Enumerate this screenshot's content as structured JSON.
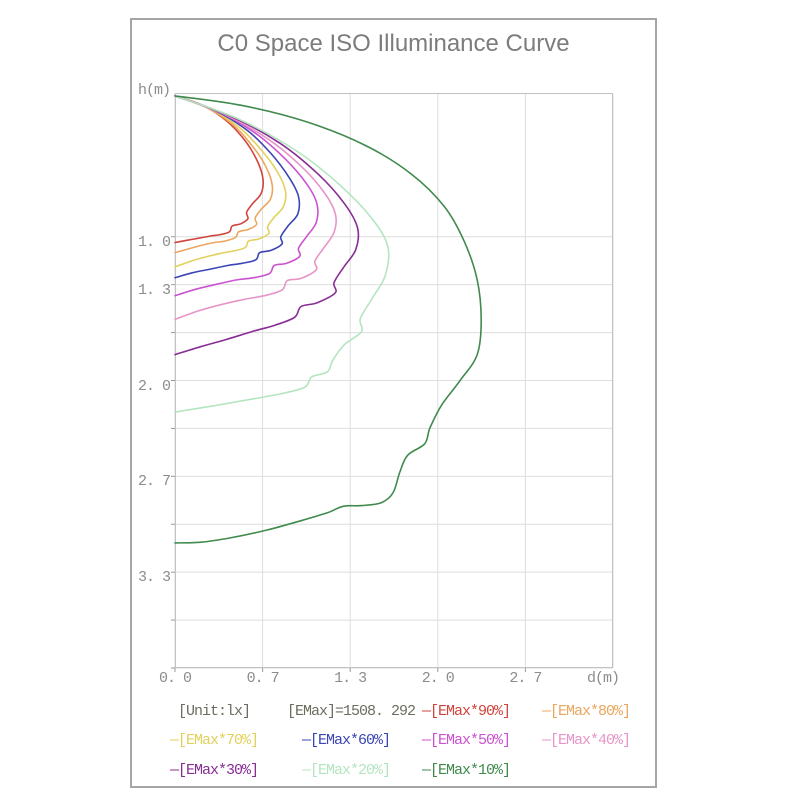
{
  "title": "C0 Space ISO Illuminance Curve",
  "chart_data": {
    "type": "line",
    "title": "C0 Space ISO Illuminance Curve",
    "xlabel": "d(m)",
    "ylabel": "h(m)",
    "x_range_m": [
      0,
      3.3333
    ],
    "y_range_m": [
      0,
      4.0
    ],
    "grid": true,
    "unit_label": "[Unit:lx]",
    "emax_label": "[EMax]=1508. 292",
    "emax_value": 1508.292,
    "x_gridlines": [
      0,
      0.6667,
      1.3333,
      2.0,
      2.6667,
      3.3333
    ],
    "y_gridlines": [
      1.0,
      1.3333,
      1.6667,
      2.0,
      2.3333,
      2.6667,
      3.0,
      3.3333,
      3.6667,
      4.0
    ],
    "x_ticks": [
      {
        "v": 0,
        "label": "0. 0"
      },
      {
        "v": 0.6667,
        "label": "0. 7"
      },
      {
        "v": 1.3333,
        "label": "1. 3"
      },
      {
        "v": 2.0,
        "label": "2. 0"
      },
      {
        "v": 2.6667,
        "label": "2. 7"
      }
    ],
    "y_ticks": [
      {
        "v": 1.0,
        "label": "1. 0"
      },
      {
        "v": 1.3333,
        "label": "1. 3"
      },
      {
        "v": 2.0,
        "label": "2. 0"
      },
      {
        "v": 2.6667,
        "label": "2. 7"
      },
      {
        "v": 3.3333,
        "label": "3. 3"
      }
    ],
    "series": [
      {
        "name": "emax-90",
        "label": "[EMax*90%]",
        "percent": 90,
        "color": "#d0443c",
        "points": [
          [
            0,
            0.02
          ],
          [
            0.22,
            0.09
          ],
          [
            0.4,
            0.2
          ],
          [
            0.54,
            0.34
          ],
          [
            0.63,
            0.48
          ],
          [
            0.67,
            0.6
          ],
          [
            0.655,
            0.7
          ],
          [
            0.59,
            0.77
          ],
          [
            0.545,
            0.83
          ],
          [
            0.555,
            0.875
          ],
          [
            0.5,
            0.91
          ],
          [
            0.435,
            0.925
          ],
          [
            0.415,
            0.965
          ],
          [
            0.345,
            0.985
          ],
          [
            0.27,
            0.995
          ],
          [
            0.18,
            1.01
          ],
          [
            0.09,
            1.025
          ],
          [
            0,
            1.04
          ]
        ]
      },
      {
        "name": "emax-80",
        "label": "[EMax*80%]",
        "percent": 80,
        "color": "#eca65e",
        "points": [
          [
            0,
            0.02
          ],
          [
            0.24,
            0.1
          ],
          [
            0.44,
            0.22
          ],
          [
            0.59,
            0.37
          ],
          [
            0.69,
            0.51
          ],
          [
            0.74,
            0.64
          ],
          [
            0.725,
            0.74
          ],
          [
            0.655,
            0.81
          ],
          [
            0.61,
            0.87
          ],
          [
            0.62,
            0.915
          ],
          [
            0.555,
            0.95
          ],
          [
            0.485,
            0.965
          ],
          [
            0.46,
            1.005
          ],
          [
            0.38,
            1.03
          ],
          [
            0.3,
            1.04
          ],
          [
            0.2,
            1.06
          ],
          [
            0.1,
            1.085
          ],
          [
            0,
            1.11
          ]
        ]
      },
      {
        "name": "emax-70",
        "label": "[EMax*70%]",
        "percent": 70,
        "color": "#e2d15c",
        "points": [
          [
            0,
            0.02
          ],
          [
            0.27,
            0.11
          ],
          [
            0.49,
            0.24
          ],
          [
            0.66,
            0.4
          ],
          [
            0.78,
            0.55
          ],
          [
            0.84,
            0.68
          ],
          [
            0.825,
            0.79
          ],
          [
            0.755,
            0.865
          ],
          [
            0.705,
            0.93
          ],
          [
            0.715,
            0.975
          ],
          [
            0.64,
            1.015
          ],
          [
            0.56,
            1.03
          ],
          [
            0.535,
            1.075
          ],
          [
            0.44,
            1.1
          ],
          [
            0.35,
            1.115
          ],
          [
            0.235,
            1.14
          ],
          [
            0.12,
            1.17
          ],
          [
            0,
            1.21
          ]
        ]
      },
      {
        "name": "emax-60",
        "label": "[EMax*60%]",
        "percent": 60,
        "color": "#3c45b5",
        "points": [
          [
            0,
            0.02
          ],
          [
            0.3,
            0.12
          ],
          [
            0.55,
            0.26
          ],
          [
            0.73,
            0.42
          ],
          [
            0.87,
            0.59
          ],
          [
            0.94,
            0.72
          ],
          [
            0.935,
            0.84
          ],
          [
            0.86,
            0.925
          ],
          [
            0.805,
            1.0
          ],
          [
            0.815,
            1.05
          ],
          [
            0.73,
            1.095
          ],
          [
            0.645,
            1.11
          ],
          [
            0.615,
            1.16
          ],
          [
            0.51,
            1.185
          ],
          [
            0.4,
            1.2
          ],
          [
            0.27,
            1.225
          ],
          [
            0.135,
            1.25
          ],
          [
            0,
            1.285
          ]
        ]
      },
      {
        "name": "emax-50",
        "label": "[EMax*50%]",
        "percent": 50,
        "color": "#cb53d0",
        "points": [
          [
            0,
            0.02
          ],
          [
            0.33,
            0.13
          ],
          [
            0.62,
            0.285
          ],
          [
            0.84,
            0.46
          ],
          [
            1.0,
            0.63
          ],
          [
            1.08,
            0.77
          ],
          [
            1.075,
            0.9
          ],
          [
            1.0,
            1.0
          ],
          [
            0.94,
            1.08
          ],
          [
            0.95,
            1.135
          ],
          [
            0.85,
            1.185
          ],
          [
            0.755,
            1.2
          ],
          [
            0.72,
            1.255
          ],
          [
            0.6,
            1.285
          ],
          [
            0.47,
            1.3
          ],
          [
            0.32,
            1.33
          ],
          [
            0.16,
            1.365
          ],
          [
            0,
            1.41
          ]
        ]
      },
      {
        "name": "emax-40",
        "label": "[EMax*40%]",
        "percent": 40,
        "color": "#e795c8",
        "points": [
          [
            0,
            0.02
          ],
          [
            0.37,
            0.145
          ],
          [
            0.7,
            0.315
          ],
          [
            0.95,
            0.5
          ],
          [
            1.13,
            0.685
          ],
          [
            1.22,
            0.84
          ],
          [
            1.21,
            0.97
          ],
          [
            1.13,
            1.08
          ],
          [
            1.065,
            1.17
          ],
          [
            1.075,
            1.23
          ],
          [
            0.96,
            1.29
          ],
          [
            0.855,
            1.305
          ],
          [
            0.815,
            1.37
          ],
          [
            0.68,
            1.41
          ],
          [
            0.53,
            1.435
          ],
          [
            0.36,
            1.47
          ],
          [
            0.18,
            1.515
          ],
          [
            0,
            1.575
          ]
        ]
      },
      {
        "name": "emax-30",
        "label": "[EMax*30%]",
        "percent": 30,
        "color": "#882d94",
        "points": [
          [
            0,
            0.02
          ],
          [
            0.42,
            0.16
          ],
          [
            0.8,
            0.35
          ],
          [
            1.09,
            0.565
          ],
          [
            1.29,
            0.77
          ],
          [
            1.39,
            0.94
          ],
          [
            1.375,
            1.09
          ],
          [
            1.285,
            1.21
          ],
          [
            1.21,
            1.32
          ],
          [
            1.22,
            1.39
          ],
          [
            1.08,
            1.46
          ],
          [
            0.96,
            1.485
          ],
          [
            0.91,
            1.56
          ],
          [
            0.76,
            1.615
          ],
          [
            0.585,
            1.66
          ],
          [
            0.39,
            1.715
          ],
          [
            0.195,
            1.765
          ],
          [
            0,
            1.82
          ]
        ]
      },
      {
        "name": "emax-20",
        "label": "[EMax*20%]",
        "percent": 20,
        "color": "#b4e5c0",
        "points": [
          [
            0,
            0.02
          ],
          [
            0.48,
            0.18
          ],
          [
            0.92,
            0.4
          ],
          [
            1.26,
            0.645
          ],
          [
            1.5,
            0.875
          ],
          [
            1.62,
            1.07
          ],
          [
            1.6,
            1.27
          ],
          [
            1.5,
            1.43
          ],
          [
            1.41,
            1.57
          ],
          [
            1.42,
            1.66
          ],
          [
            1.29,
            1.75
          ],
          [
            1.2,
            1.86
          ],
          [
            1.16,
            1.94
          ],
          [
            1.04,
            1.975
          ],
          [
            0.99,
            2.045
          ],
          [
            0.82,
            2.09
          ],
          [
            0.58,
            2.13
          ],
          [
            0.3,
            2.175
          ],
          [
            0,
            2.22
          ]
        ]
      },
      {
        "name": "emax-10",
        "label": "[EMax*10%]",
        "percent": 10,
        "color": "#418a4d",
        "points": [
          [
            0,
            0.02
          ],
          [
            0.5,
            0.085
          ],
          [
            1.0,
            0.2
          ],
          [
            1.45,
            0.365
          ],
          [
            1.8,
            0.565
          ],
          [
            2.05,
            0.79
          ],
          [
            2.2,
            1.03
          ],
          [
            2.3,
            1.3
          ],
          [
            2.33,
            1.58
          ],
          [
            2.3,
            1.82
          ],
          [
            2.17,
            2.0
          ],
          [
            2.03,
            2.17
          ],
          [
            1.94,
            2.33
          ],
          [
            1.9,
            2.44
          ],
          [
            1.77,
            2.52
          ],
          [
            1.71,
            2.64
          ],
          [
            1.66,
            2.78
          ],
          [
            1.57,
            2.85
          ],
          [
            1.42,
            2.87
          ],
          [
            1.28,
            2.875
          ],
          [
            1.16,
            2.92
          ],
          [
            0.96,
            2.975
          ],
          [
            0.7,
            3.04
          ],
          [
            0.42,
            3.095
          ],
          [
            0.2,
            3.125
          ],
          [
            0,
            3.13
          ]
        ]
      }
    ]
  },
  "legend": {
    "rows": [
      [
        {
          "name": "unit",
          "label": "[Unit:lx]",
          "color": "#6d6d60",
          "dash": false
        },
        {
          "name": "emax",
          "label": "[EMax]=1508. 292",
          "color": "#6d6d60",
          "dash": false
        },
        {
          "name": "emax-90",
          "label": "[EMax*90%]",
          "color": "#d0443c",
          "dash": true
        },
        {
          "name": "emax-80",
          "label": "[EMax*80%]",
          "color": "#eca65e",
          "dash": true
        }
      ],
      [
        {
          "name": "emax-70",
          "label": "[EMax*70%]",
          "color": "#e2d15c",
          "dash": true
        },
        {
          "name": "emax-60",
          "label": "[EMax*60%]",
          "color": "#3c45b5",
          "dash": true
        },
        {
          "name": "emax-50",
          "label": "[EMax*50%]",
          "color": "#cb53d0",
          "dash": true
        },
        {
          "name": "emax-40",
          "label": "[EMax*40%]",
          "color": "#e795c8",
          "dash": true
        }
      ],
      [
        {
          "name": "emax-30",
          "label": "[EMax*30%]",
          "color": "#882d94",
          "dash": true
        },
        {
          "name": "emax-20",
          "label": "[EMax*20%]",
          "color": "#b4e5c0",
          "dash": true
        },
        {
          "name": "emax-10",
          "label": "[EMax*10%]",
          "color": "#418a4d",
          "dash": true
        }
      ]
    ],
    "dash_char": "—"
  },
  "colors": {
    "grid": "#dedede",
    "plot_border": "#c2c2c2",
    "tick": "#9a9a9a",
    "axis_text": "#8c8c8c",
    "title_text": "#7c7c7c",
    "page_border": "#a6a6a6"
  }
}
